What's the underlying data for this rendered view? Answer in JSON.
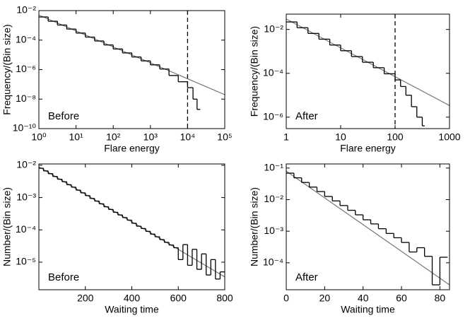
{
  "chart_data": [
    {
      "type": "line",
      "xlog": true,
      "ylog": true,
      "xlabel": "Flare energy",
      "ylabel": "Frequency/(Bin size)",
      "annotation": "Before",
      "xlim": [
        1,
        100000
      ],
      "ylim": [
        1e-10,
        0.01
      ],
      "xticks": [
        {
          "value": 1,
          "label": "10⁰"
        },
        {
          "value": 10,
          "label": "10¹"
        },
        {
          "value": 100,
          "label": "10²"
        },
        {
          "value": 1000,
          "label": "10³"
        },
        {
          "value": 10000,
          "label": "10⁴"
        },
        {
          "value": 100000,
          "label": "10⁵"
        }
      ],
      "yticks": [
        {
          "value": 1e-10,
          "label": "10⁻¹⁰"
        },
        {
          "value": 1e-08,
          "label": "10⁻⁸"
        },
        {
          "value": 1e-06,
          "label": "10⁻⁶"
        },
        {
          "value": 0.0001,
          "label": "10⁻⁴"
        },
        {
          "value": 0.01,
          "label": "10⁻²"
        }
      ],
      "vline": 10000,
      "series": [
        {
          "color": "#777777",
          "x": [
            1,
            100000
          ],
          "values": [
            0.005,
            2e-08
          ]
        },
        {
          "color": "#000000",
          "bins": [
            1,
            1.78,
            3.16,
            5.62,
            10,
            17.8,
            31.6,
            56.2,
            100,
            178,
            316,
            562,
            1000,
            1780,
            3160,
            5620,
            10000,
            14000,
            18000,
            22000
          ],
          "values": [
            0.0037,
            0.0019,
            0.00105,
            0.00056,
            0.0003,
            0.00016,
            8.7e-05,
            4.7e-05,
            2.5e-05,
            1.35e-05,
            7.2e-06,
            3.9e-06,
            2.1e-06,
            1.1e-06,
            4e-07,
            1.5e-07,
            6e-08,
            1e-08,
            2e-09
          ]
        }
      ]
    },
    {
      "type": "line",
      "xlog": true,
      "ylog": true,
      "xlabel": "Flare energy",
      "ylabel": "Frequency/(Bin size)",
      "annotation": "After",
      "xlim": [
        1,
        1000
      ],
      "ylim": [
        3e-07,
        0.05
      ],
      "xticks": [
        1,
        10,
        100,
        1000
      ],
      "yticks": [
        {
          "value": 1e-06,
          "label": "10⁻⁶"
        },
        {
          "value": 0.0001,
          "label": "10⁻⁴"
        },
        {
          "value": 0.01,
          "label": "10⁻²"
        }
      ],
      "vline": 100,
      "series": [
        {
          "color": "#777777",
          "x": [
            1,
            1000
          ],
          "values": [
            0.03,
            3.4e-06
          ]
        },
        {
          "color": "#000000",
          "bins": [
            1,
            1.58,
            2.51,
            3.98,
            6.31,
            10,
            15.8,
            25.1,
            39.8,
            63.1,
            100,
            126,
            158,
            200,
            251,
            316,
            350
          ],
          "values": [
            0.022,
            0.012,
            0.0066,
            0.0036,
            0.00195,
            0.00107,
            0.00058,
            0.00032,
            0.00018,
            9.5e-05,
            5e-05,
            2.5e-05,
            1e-05,
            3e-06,
            1e-06,
            4e-07
          ]
        }
      ]
    },
    {
      "type": "line",
      "xlog": false,
      "ylog": true,
      "xlabel": "Waiting time",
      "ylabel": "Number/(Bin size)",
      "annotation": "Before",
      "xlim": [
        0,
        800
      ],
      "ylim": [
        1.4e-06,
        0.011
      ],
      "xticks": [
        200,
        400,
        600,
        800
      ],
      "yticks": [
        {
          "value": 1e-05,
          "label": "10⁻⁵"
        },
        {
          "value": 0.0001,
          "label": "10⁻⁴"
        },
        {
          "value": 0.001,
          "label": "10⁻³"
        },
        {
          "value": 0.01,
          "label": "10⁻²"
        }
      ],
      "series": [
        {
          "color": "#777777",
          "x": [
            0,
            800
          ],
          "values": [
            0.009,
            3.5e-06
          ]
        },
        {
          "color": "#000000",
          "bins": [
            0,
            20,
            40,
            60,
            80,
            100,
            120,
            140,
            160,
            180,
            200,
            220,
            240,
            260,
            280,
            300,
            320,
            340,
            360,
            380,
            400,
            420,
            440,
            460,
            480,
            500,
            520,
            540,
            560,
            580,
            600,
            620,
            640,
            660,
            680,
            700,
            720,
            740,
            760,
            780,
            800
          ],
          "values": [
            0.0081,
            0.0067,
            0.0055,
            0.0045,
            0.0037,
            0.0031,
            0.0025,
            0.0021,
            0.0017,
            0.0014,
            0.00115,
            0.00094,
            0.00078,
            0.00064,
            0.00052,
            0.00043,
            0.00035,
            0.00029,
            0.00024,
            0.0002,
            0.00016,
            0.00013,
            0.00011,
            9e-05,
            7.4e-05,
            6.1e-05,
            5e-05,
            4.1e-05,
            3.4e-05,
            2.8e-05,
            1.2e-05,
            3.5e-05,
            8e-06,
            2.5e-05,
            6e-06,
            1.8e-05,
            4e-06,
            1.2e-05,
            3e-06,
            5e-06
          ]
        }
      ]
    },
    {
      "type": "line",
      "xlog": false,
      "ylog": true,
      "xlabel": "Waiting time",
      "ylabel": "Number/(Bin size)",
      "annotation": "After",
      "xlim": [
        0,
        85
      ],
      "ylim": [
        1.4e-05,
        0.135
      ],
      "xticks": [
        0,
        20,
        40,
        60,
        80
      ],
      "yticks": [
        {
          "value": 0.0001,
          "label": "10⁻⁴"
        },
        {
          "value": 0.001,
          "label": "10⁻³"
        },
        {
          "value": 0.01,
          "label": "10⁻²"
        },
        {
          "value": 0.1,
          "label": "10⁻¹"
        }
      ],
      "series": [
        {
          "color": "#777777",
          "x": [
            0,
            85
          ],
          "values": [
            0.08,
            2e-05
          ]
        },
        {
          "color": "#000000",
          "bins": [
            0,
            4,
            8,
            12,
            16,
            20,
            24,
            28,
            32,
            36,
            40,
            44,
            48,
            52,
            56,
            60,
            64,
            68,
            72,
            76,
            80,
            84
          ],
          "values": [
            0.069,
            0.049,
            0.035,
            0.025,
            0.018,
            0.0126,
            0.0091,
            0.0065,
            0.0046,
            0.0033,
            0.0023,
            0.0017,
            0.0012,
            0.00085,
            0.00062,
            0.00044,
            0.00022,
            0.0003,
            0.00016,
            2e-05,
            0.00015
          ]
        }
      ]
    }
  ]
}
